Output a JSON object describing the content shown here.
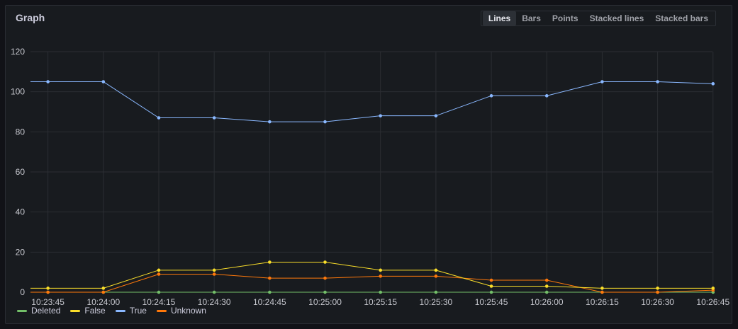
{
  "panel": {
    "title": "Graph",
    "views": [
      "Lines",
      "Bars",
      "Points",
      "Stacked lines",
      "Stacked bars"
    ],
    "active_view": "Lines"
  },
  "colors": {
    "Deleted": "#73bf69",
    "False": "#fade2a",
    "True": "#8ab8ff",
    "Unknown": "#ff780a"
  },
  "chart_data": {
    "type": "line",
    "title": "Graph",
    "x": [
      "10:23:45",
      "10:24:00",
      "10:24:15",
      "10:24:30",
      "10:24:45",
      "10:25:00",
      "10:25:15",
      "10:25:30",
      "10:25:45",
      "10:26:00",
      "10:26:15",
      "10:26:30",
      "10:26:45"
    ],
    "ylim": [
      0,
      120
    ],
    "yticks": [
      0,
      20,
      40,
      60,
      80,
      100,
      120
    ],
    "grid": true,
    "legend_placement": "bottom-left",
    "series": [
      {
        "name": "Deleted",
        "values": [
          0,
          0,
          0,
          0,
          0,
          0,
          0,
          0,
          0,
          0,
          0,
          0,
          0
        ]
      },
      {
        "name": "False",
        "values": [
          2,
          2,
          11,
          11,
          15,
          15,
          11,
          11,
          3,
          3,
          2,
          2,
          2
        ]
      },
      {
        "name": "True",
        "values": [
          105,
          105,
          87,
          87,
          85,
          85,
          88,
          88,
          98,
          98,
          105,
          105,
          104
        ]
      },
      {
        "name": "Unknown",
        "values": [
          0,
          0,
          9,
          9,
          7,
          7,
          8,
          8,
          6,
          6,
          0,
          0,
          1
        ]
      }
    ]
  }
}
